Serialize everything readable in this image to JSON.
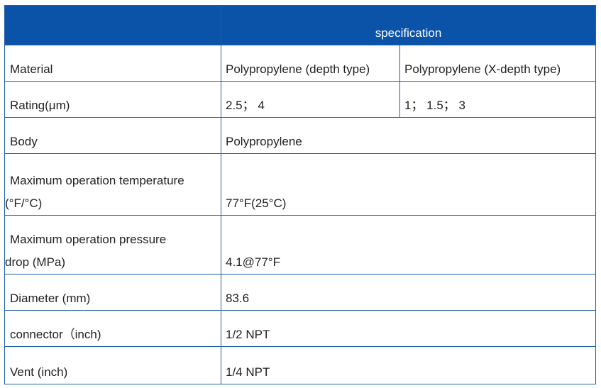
{
  "table": {
    "header": {
      "left": "",
      "right": "specification"
    },
    "rows": [
      {
        "label": "Material",
        "value_a": "Polypropylene (depth type)",
        "value_b": "Polypropylene (X-depth type)"
      },
      {
        "label": "Rating(μm)",
        "value_a": "2.5； 4",
        "value_b": "1； 1.5； 3"
      },
      {
        "label": "Body",
        "value": "Polypropylene"
      },
      {
        "label_line1": "Maximum operation temperature",
        "label_line2": "(°F/°C)",
        "value": "77°F(25°C)"
      },
      {
        "label_line1": "Maximum operation pressure",
        "label_line2": "drop (MPa)",
        "value": "4.1@77°F"
      },
      {
        "label": "Diameter (mm)",
        "value": "83.6"
      },
      {
        "label": "connector（inch)",
        "value": "1/2 NPT"
      },
      {
        "label": "Vent (inch)",
        "value": "1/4 NPT"
      }
    ]
  }
}
